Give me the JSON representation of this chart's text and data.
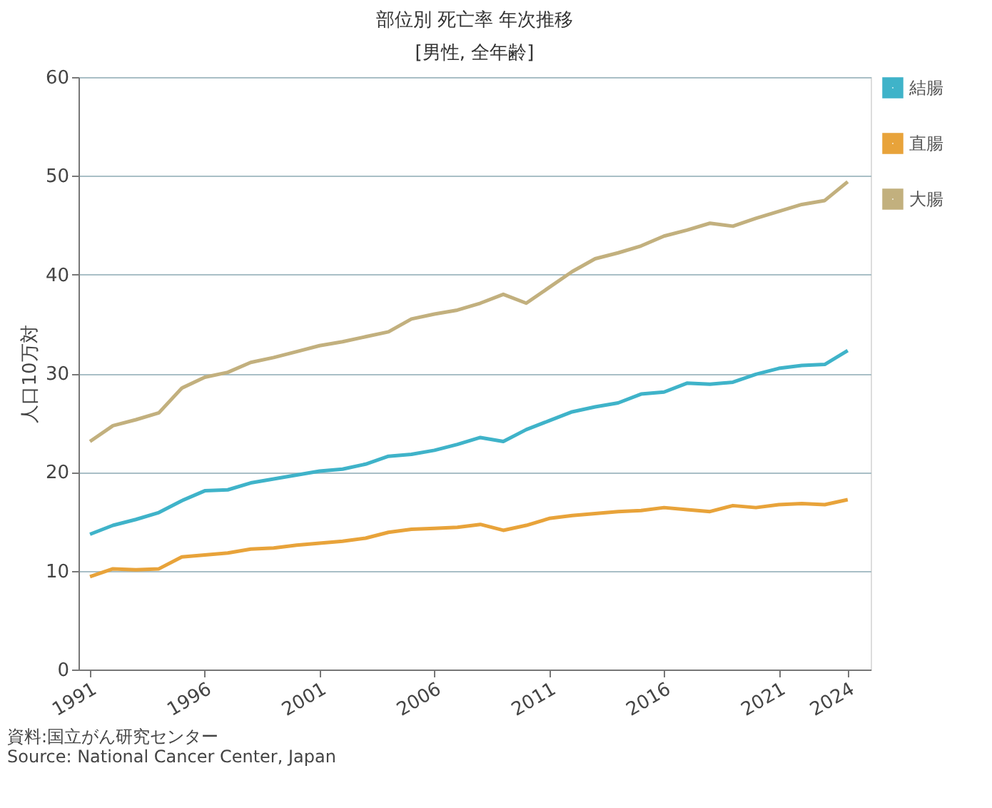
{
  "chart_data": {
    "type": "line",
    "title": "部位別 死亡率 年次推移",
    "subtitle": "[男性, 全年齢]",
    "ylabel": "人口10万対",
    "x": [
      1991,
      1992,
      1993,
      1994,
      1995,
      1996,
      1997,
      1998,
      1999,
      2000,
      2001,
      2002,
      2003,
      2004,
      2005,
      2006,
      2007,
      2008,
      2009,
      2010,
      2011,
      2012,
      2013,
      2014,
      2015,
      2016,
      2017,
      2018,
      2019,
      2020,
      2021,
      2022,
      2023,
      2024
    ],
    "series": [
      {
        "name": "結腸",
        "color": "#3fb3c9",
        "values": [
          13.7,
          14.6,
          15.2,
          15.9,
          17.1,
          18.1,
          18.2,
          18.9,
          19.3,
          19.7,
          20.1,
          20.3,
          20.8,
          21.6,
          21.8,
          22.2,
          22.8,
          23.5,
          23.1,
          24.3,
          25.2,
          26.1,
          26.6,
          27.0,
          27.9,
          28.1,
          29.0,
          28.9,
          29.1,
          29.9,
          30.5,
          30.8,
          30.9,
          32.3
        ]
      },
      {
        "name": "直腸",
        "color": "#e8a33a",
        "values": [
          9.4,
          10.2,
          10.1,
          10.2,
          11.4,
          11.6,
          11.8,
          12.2,
          12.3,
          12.6,
          12.8,
          13.0,
          13.3,
          13.9,
          14.2,
          14.3,
          14.4,
          14.7,
          14.1,
          14.6,
          15.3,
          15.6,
          15.8,
          16.0,
          16.1,
          16.4,
          16.2,
          16.0,
          16.6,
          16.4,
          16.7,
          16.8,
          16.7,
          17.2
        ]
      },
      {
        "name": "大腸",
        "color": "#c2b07e",
        "values": [
          23.1,
          24.7,
          25.3,
          26.0,
          28.5,
          29.6,
          30.1,
          31.1,
          31.6,
          32.2,
          32.8,
          33.2,
          33.7,
          34.2,
          35.5,
          36.0,
          36.4,
          37.1,
          38.0,
          37.1,
          38.7,
          40.3,
          41.6,
          42.2,
          42.9,
          43.9,
          44.5,
          45.2,
          44.9,
          45.7,
          46.4,
          47.1,
          47.5,
          49.4
        ]
      }
    ],
    "xlim": [
      1990.5,
      2025
    ],
    "xticks": [
      1991,
      1996,
      2001,
      2006,
      2011,
      2016,
      2021,
      2024
    ],
    "ylim": [
      0,
      60
    ],
    "yticks": [
      0,
      10,
      20,
      30,
      40,
      50,
      60
    ],
    "grid": "y",
    "legend": "top right",
    "marker": "none",
    "line_style": "solid",
    "annotations": [
      "資料:国立がん研究センター",
      "Source: National Cancer Center, Japan"
    ]
  }
}
